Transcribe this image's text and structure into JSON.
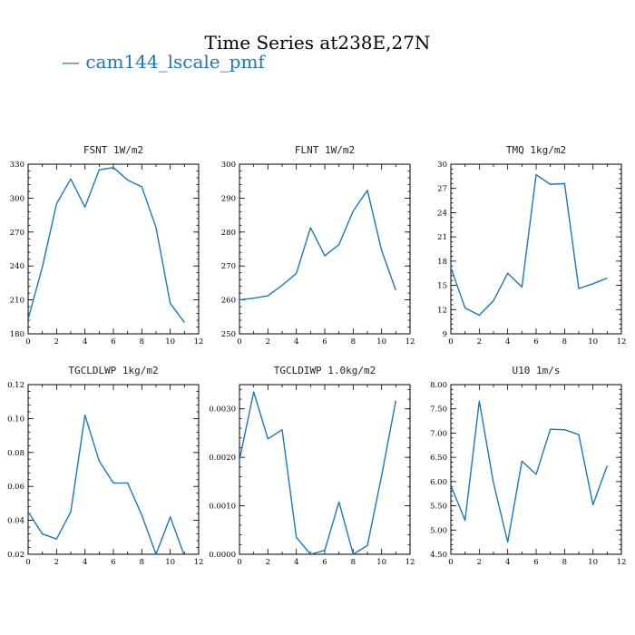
{
  "figure": {
    "title": "Time Series at238E,27N",
    "legend": "— cam144_lscale_pmf",
    "series_color": "#1f77b4"
  },
  "chart_data": [
    {
      "type": "line",
      "title": "FSNT   1W/m2",
      "x": [
        0,
        1,
        2,
        3,
        4,
        5,
        6,
        7,
        8,
        9,
        10,
        11
      ],
      "values": [
        193,
        239,
        295,
        317,
        292,
        325,
        327,
        316,
        310,
        274,
        207,
        190
      ],
      "xlim": [
        0,
        12
      ],
      "ylim": [
        180,
        330
      ],
      "xticks": [
        "0",
        "2",
        "4",
        "6",
        "8",
        "10",
        "12"
      ],
      "yticks": [
        180,
        210,
        240,
        270,
        300,
        330
      ],
      "ytick_labels": [
        "180",
        "210",
        "240",
        "270",
        "300",
        "330"
      ]
    },
    {
      "type": "line",
      "title": "FLNT   1W/m2",
      "x": [
        0,
        1,
        2,
        3,
        4,
        5,
        6,
        7,
        8,
        9,
        10,
        11
      ],
      "values": [
        260,
        260.5,
        261.2,
        264.3,
        267.8,
        281.3,
        273,
        276.3,
        286.2,
        292.3,
        274.6,
        262.8
      ],
      "xlim": [
        0,
        12
      ],
      "ylim": [
        250,
        300
      ],
      "xticks": [
        "0",
        "2",
        "4",
        "6",
        "8",
        "10",
        "12"
      ],
      "yticks": [
        250,
        260,
        270,
        280,
        290,
        300
      ],
      "ytick_labels": [
        "250",
        "260",
        "270",
        "280",
        "290",
        "300"
      ]
    },
    {
      "type": "line",
      "title": "TMQ   1kg/m2",
      "x": [
        0,
        1,
        2,
        3,
        4,
        5,
        6,
        7,
        8,
        9,
        10,
        11
      ],
      "values": [
        17.2,
        12.2,
        11.3,
        13.1,
        16.5,
        14.8,
        28.7,
        27.5,
        27.6,
        14.6,
        15.2,
        15.9
      ],
      "xlim": [
        0,
        12
      ],
      "ylim": [
        9,
        30
      ],
      "xticks": [
        "0",
        "2",
        "4",
        "6",
        "8",
        "10",
        "12"
      ],
      "yticks": [
        9,
        12,
        15,
        18,
        21,
        24,
        27,
        30
      ],
      "ytick_labels": [
        "9",
        "12",
        "15",
        "18",
        "21",
        "24",
        "27",
        "30"
      ]
    },
    {
      "type": "line",
      "title": "TGCLDLWP   1kg/m2",
      "x": [
        0,
        1,
        2,
        3,
        4,
        5,
        6,
        7,
        8,
        9,
        10,
        11
      ],
      "values": [
        0.045,
        0.032,
        0.029,
        0.045,
        0.102,
        0.075,
        0.062,
        0.062,
        0.043,
        0.02,
        0.042,
        0.019
      ],
      "xlim": [
        0,
        12
      ],
      "ylim": [
        0.02,
        0.12
      ],
      "xticks": [
        "0",
        "2",
        "4",
        "6",
        "8",
        "10",
        "12"
      ],
      "yticks": [
        0.02,
        0.04,
        0.06,
        0.08,
        0.1,
        0.12
      ],
      "ytick_labels": [
        "0.02",
        "0.04",
        "0.06",
        "0.08",
        "0.10",
        "0.12"
      ]
    },
    {
      "type": "line",
      "title": "TGCLDIWP   1.0kg/m2",
      "x": [
        0,
        1,
        2,
        3,
        4,
        5,
        6,
        7,
        8,
        9,
        10,
        11
      ],
      "values": [
        0.00195,
        0.00335,
        0.00238,
        0.00257,
        0.00035,
        0.0,
        8e-05,
        0.00108,
        0.0,
        0.00018,
        0.00162,
        0.00317
      ],
      "xlim": [
        0,
        12
      ],
      "ylim": [
        0,
        0.0035
      ],
      "xticks": [
        "0",
        "2",
        "4",
        "6",
        "8",
        "10",
        "12"
      ],
      "yticks": [
        0,
        0.001,
        0.002,
        0.003
      ],
      "ytick_labels": [
        "0.0000",
        "0.0010",
        "0.0020",
        "0.0030"
      ]
    },
    {
      "type": "line",
      "title": "U10   1m/s",
      "x": [
        0,
        1,
        2,
        3,
        4,
        5,
        6,
        7,
        8,
        9,
        10,
        11
      ],
      "values": [
        5.92,
        5.2,
        7.66,
        5.97,
        4.75,
        6.42,
        6.15,
        7.08,
        7.07,
        6.97,
        5.52,
        6.33
      ],
      "xlim": [
        0,
        12
      ],
      "ylim": [
        4.5,
        8.0
      ],
      "xticks": [
        "0",
        "2",
        "4",
        "6",
        "8",
        "10",
        "12"
      ],
      "yticks": [
        4.5,
        5.0,
        5.5,
        6.0,
        6.5,
        7.0,
        7.5,
        8.0
      ],
      "ytick_labels": [
        "4.50",
        "5.00",
        "5.50",
        "6.00",
        "6.50",
        "7.00",
        "7.50",
        "8.00"
      ]
    }
  ]
}
